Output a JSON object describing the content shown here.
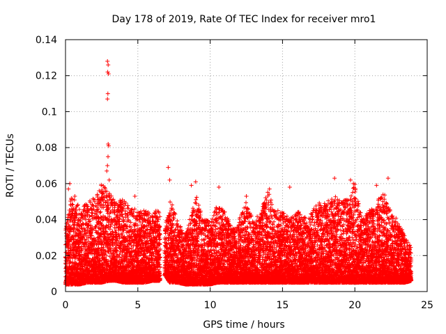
{
  "chart_data": {
    "type": "scatter",
    "title": "Day 178 of 2019, Rate Of TEC Index for receiver mro1",
    "xlabel": "GPS time / hours",
    "ylabel": "ROTI / TECUs",
    "xlim": [
      0,
      25
    ],
    "ylim": [
      0,
      0.14
    ],
    "xticks": [
      0,
      5,
      10,
      15,
      20,
      25
    ],
    "xtick_labels": [
      "0",
      "5",
      "10",
      "15",
      "20",
      "25"
    ],
    "yticks": [
      0,
      0.02,
      0.04,
      0.06,
      0.08,
      0.1,
      0.12,
      0.14
    ],
    "ytick_labels": [
      "0",
      "0.02",
      "0.04",
      "0.06",
      "0.08",
      "0.1",
      "0.12",
      "0.14"
    ],
    "grid": true,
    "marker": "+",
    "color": "#ff0000",
    "series": [
      {
        "name": "ROTI",
        "note": "dense cloud of points every few minutes from 0 to ~24 h; typical values 0.005–0.03 TECU/min",
        "envelope": [
          [
            0.0,
            0.004,
            0.034
          ],
          [
            0.5,
            0.004,
            0.058
          ],
          [
            1.0,
            0.004,
            0.045
          ],
          [
            1.5,
            0.005,
            0.05
          ],
          [
            2.0,
            0.005,
            0.052
          ],
          [
            2.5,
            0.005,
            0.06
          ],
          [
            3.0,
            0.006,
            0.055
          ],
          [
            3.5,
            0.006,
            0.05
          ],
          [
            4.0,
            0.005,
            0.052
          ],
          [
            4.5,
            0.005,
            0.047
          ],
          [
            5.0,
            0.005,
            0.045
          ],
          [
            5.5,
            0.005,
            0.045
          ],
          [
            6.0,
            0.006,
            0.043
          ],
          [
            6.5,
            0.006,
            0.047
          ],
          [
            6.8,
            0.01,
            0.03
          ],
          [
            7.2,
            0.005,
            0.055
          ],
          [
            7.7,
            0.005,
            0.04
          ],
          [
            8.3,
            0.004,
            0.032
          ],
          [
            9.0,
            0.004,
            0.055
          ],
          [
            9.5,
            0.004,
            0.04
          ],
          [
            10.0,
            0.004,
            0.04
          ],
          [
            10.5,
            0.005,
            0.048
          ],
          [
            11.0,
            0.005,
            0.045
          ],
          [
            11.5,
            0.005,
            0.035
          ],
          [
            12.0,
            0.005,
            0.04
          ],
          [
            12.5,
            0.005,
            0.05
          ],
          [
            13.0,
            0.005,
            0.04
          ],
          [
            13.5,
            0.005,
            0.045
          ],
          [
            14.0,
            0.005,
            0.057
          ],
          [
            14.5,
            0.005,
            0.045
          ],
          [
            15.0,
            0.005,
            0.045
          ],
          [
            15.5,
            0.005,
            0.04
          ],
          [
            16.0,
            0.005,
            0.045
          ],
          [
            16.5,
            0.005,
            0.042
          ],
          [
            17.0,
            0.005,
            0.045
          ],
          [
            17.5,
            0.005,
            0.05
          ],
          [
            18.0,
            0.005,
            0.05
          ],
          [
            18.5,
            0.005,
            0.055
          ],
          [
            19.0,
            0.005,
            0.05
          ],
          [
            19.5,
            0.005,
            0.052
          ],
          [
            20.0,
            0.005,
            0.06
          ],
          [
            20.5,
            0.005,
            0.04
          ],
          [
            21.0,
            0.005,
            0.045
          ],
          [
            21.5,
            0.005,
            0.05
          ],
          [
            22.0,
            0.005,
            0.055
          ],
          [
            22.5,
            0.005,
            0.045
          ],
          [
            23.0,
            0.005,
            0.04
          ],
          [
            23.5,
            0.005,
            0.03
          ],
          [
            23.9,
            0.006,
            0.025
          ]
        ],
        "highlights": [
          {
            "x": 2.9,
            "y": 0.128
          },
          {
            "x": 2.95,
            "y": 0.126
          },
          {
            "x": 2.92,
            "y": 0.122
          },
          {
            "x": 2.97,
            "y": 0.121
          },
          {
            "x": 2.93,
            "y": 0.11
          },
          {
            "x": 2.9,
            "y": 0.107
          },
          {
            "x": 2.95,
            "y": 0.082
          },
          {
            "x": 2.98,
            "y": 0.081
          },
          {
            "x": 2.94,
            "y": 0.075
          },
          {
            "x": 2.9,
            "y": 0.07
          },
          {
            "x": 2.85,
            "y": 0.067
          },
          {
            "x": 3.02,
            "y": 0.062
          },
          {
            "x": 7.1,
            "y": 0.069
          },
          {
            "x": 7.2,
            "y": 0.062
          },
          {
            "x": 8.7,
            "y": 0.059
          },
          {
            "x": 9.0,
            "y": 0.061
          },
          {
            "x": 10.6,
            "y": 0.058
          },
          {
            "x": 12.5,
            "y": 0.053
          },
          {
            "x": 14.1,
            "y": 0.057
          },
          {
            "x": 15.5,
            "y": 0.058
          },
          {
            "x": 18.6,
            "y": 0.063
          },
          {
            "x": 19.7,
            "y": 0.062
          },
          {
            "x": 19.9,
            "y": 0.06
          },
          {
            "x": 21.5,
            "y": 0.059
          },
          {
            "x": 22.3,
            "y": 0.063
          },
          {
            "x": 0.3,
            "y": 0.06
          },
          {
            "x": 0.2,
            "y": 0.057
          },
          {
            "x": 2.2,
            "y": 0.054
          },
          {
            "x": 4.8,
            "y": 0.053
          }
        ]
      }
    ]
  }
}
